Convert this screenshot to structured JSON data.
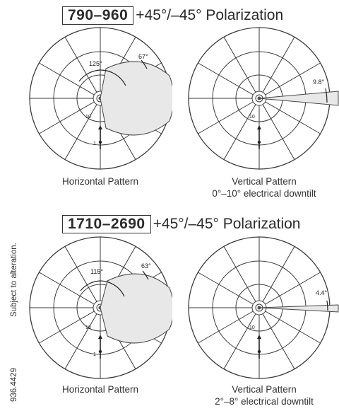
{
  "side_text": {
    "note": "Subject to alteration.",
    "number": "936.4429"
  },
  "bands": [
    {
      "band": "790–960",
      "polarization": "+45°/–45° Polarization",
      "horizontal": {
        "caption": "Horizontal Pattern",
        "angle_inner": "125°",
        "angle_outer": "67°",
        "ring_label": "10",
        "axis_label": "1"
      },
      "vertical": {
        "caption_line1": "Vertical Pattern",
        "caption_line2": "0°–10° electrical downtilt",
        "angle": "9.8°",
        "ring_label": "10",
        "axis_label": "1"
      }
    },
    {
      "band": "1710–2690",
      "polarization": "+45°/–45° Polarization",
      "horizontal": {
        "caption": "Horizontal Pattern",
        "angle_inner": "115°",
        "angle_outer": "63°",
        "ring_label": "10",
        "axis_label": "1"
      },
      "vertical": {
        "caption_line1": "Vertical Pattern",
        "caption_line2": "2°–8° electrical downtilt",
        "angle": "4.4°",
        "ring_label": "10",
        "axis_label": "1"
      }
    }
  ]
}
